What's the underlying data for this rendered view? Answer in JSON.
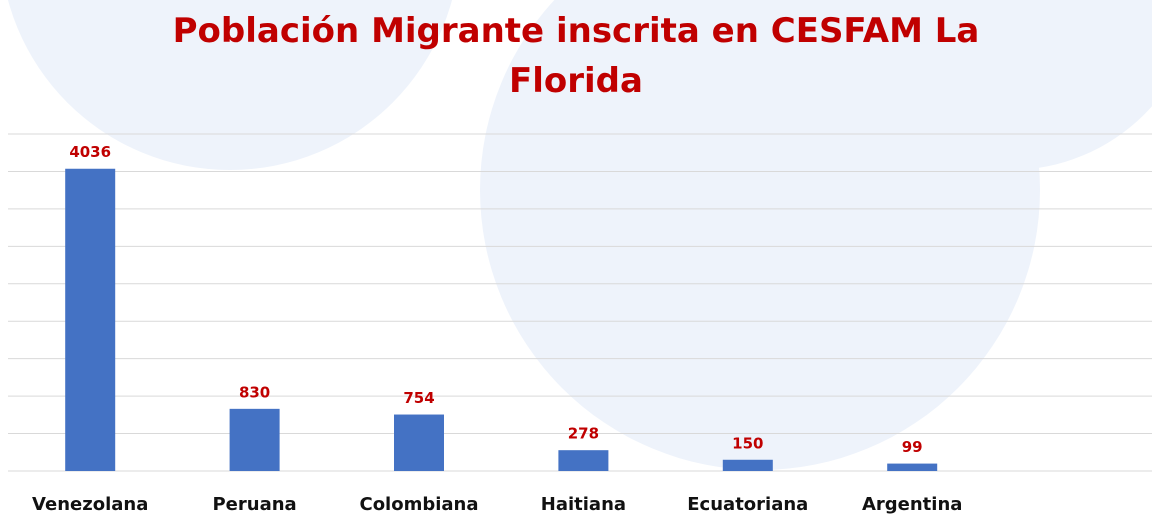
{
  "chart_data": {
    "type": "bar",
    "title": "Población Migrante inscrita en CESFAM La Florida",
    "categories": [
      "Venezolana",
      "Peruana",
      "Colombiana",
      "Haitiana",
      "Ecuatoriana",
      "Argentina"
    ],
    "values": [
      4036,
      830,
      754,
      278,
      150,
      99
    ],
    "color": "#4472c4",
    "ylim": [
      0,
      4500
    ],
    "yticks": [
      0,
      500,
      1000,
      1500,
      2000,
      2500,
      3000,
      3500,
      4000,
      4500
    ],
    "grid": true
  }
}
